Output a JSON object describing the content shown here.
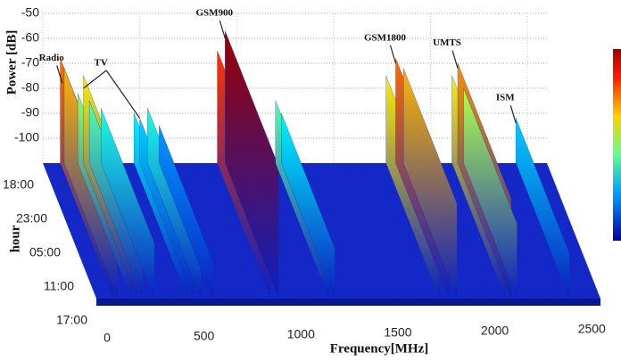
{
  "chart_data": {
    "type": "waterfall",
    "x_label": "Frequency[MHz]",
    "y_label": "Power [dB]",
    "z_label": "hour",
    "xlim": [
      0,
      2600
    ],
    "xticks": [
      0,
      500,
      1000,
      1500,
      2000,
      2500
    ],
    "ylim": [
      -110,
      -50
    ],
    "yticks": [
      -50,
      -60,
      -70,
      -80,
      -90,
      -100
    ],
    "hours": [
      "18:00",
      "23:00",
      "05:00",
      "11:00",
      "17:00"
    ],
    "grid": true,
    "series": [
      {
        "x": [
          90,
          110,
          180,
          210,
          240,
          300,
          470,
          500,
          540,
          600,
          900,
          940,
          1200,
          1230,
          1770,
          1820,
          1860,
          2110,
          2140,
          2170,
          2440
        ],
        "values": [
          -68,
          -72,
          -82,
          -75,
          -85,
          -88,
          -90,
          -92,
          -88,
          -95,
          -65,
          -57,
          -85,
          -90,
          -75,
          -68,
          -72,
          -75,
          -70,
          -80,
          -92
        ]
      }
    ],
    "annotations": [
      {
        "text": "Radio",
        "x": 100,
        "y": -78
      },
      {
        "text": "TV",
        "x": [
          210,
          500
        ],
        "y": [
          -80,
          -92
        ]
      },
      {
        "text": "GSM900",
        "x": 940,
        "y": -60
      },
      {
        "text": "GSM1800",
        "x": 1820,
        "y": -70
      },
      {
        "text": "UMTS",
        "x": 2140,
        "y": -72
      },
      {
        "text": "ISM",
        "x": 2440,
        "y": -94
      }
    ]
  }
}
